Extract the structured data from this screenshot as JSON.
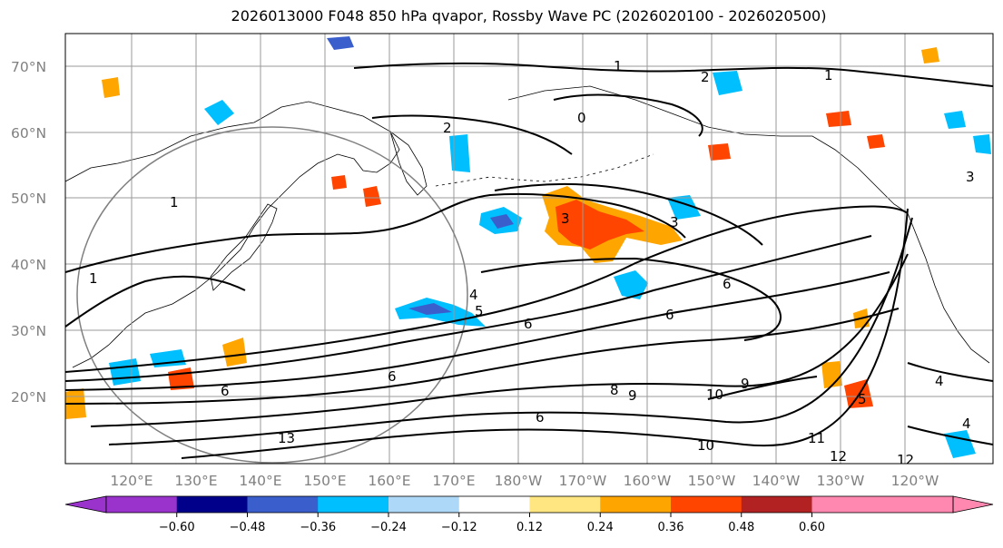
{
  "title": "2026013000 F048 850 hPa qvapor, Rossby Wave PC (2026020100 - 2026020500)",
  "lat_labels": [
    "70°N",
    "60°N",
    "50°N",
    "40°N",
    "30°N",
    "20°N"
  ],
  "lon_labels": [
    "120°E",
    "130°E",
    "140°E",
    "150°E",
    "160°E",
    "170°E",
    "180°W",
    "170°W",
    "160°W",
    "150°W",
    "140°W",
    "130°W",
    "120°W"
  ],
  "colorbar": {
    "colors": [
      "#9933cc",
      "#00008b",
      "#3a5fcd",
      "#00bfff",
      "#add8f7",
      "#ffffff",
      "#ffe680",
      "#ffa500",
      "#ff4500",
      "#b22222",
      "#ff88b0",
      "#ff88b0"
    ],
    "tick_labels": [
      "−0.60",
      "−0.48",
      "−0.36",
      "−0.24",
      "−0.12",
      "0.12",
      "0.24",
      "0.36",
      "0.48",
      "0.60"
    ]
  },
  "contour_labels": [
    "1",
    "2",
    "1",
    "2",
    "0",
    "1",
    "1",
    "3",
    "3",
    "4",
    "5",
    "6",
    "6",
    "6",
    "6",
    "6",
    "6",
    "8",
    "9",
    "10",
    "9",
    "10",
    "11",
    "12",
    "12",
    "13",
    "4",
    "5",
    "3",
    "4"
  ]
}
